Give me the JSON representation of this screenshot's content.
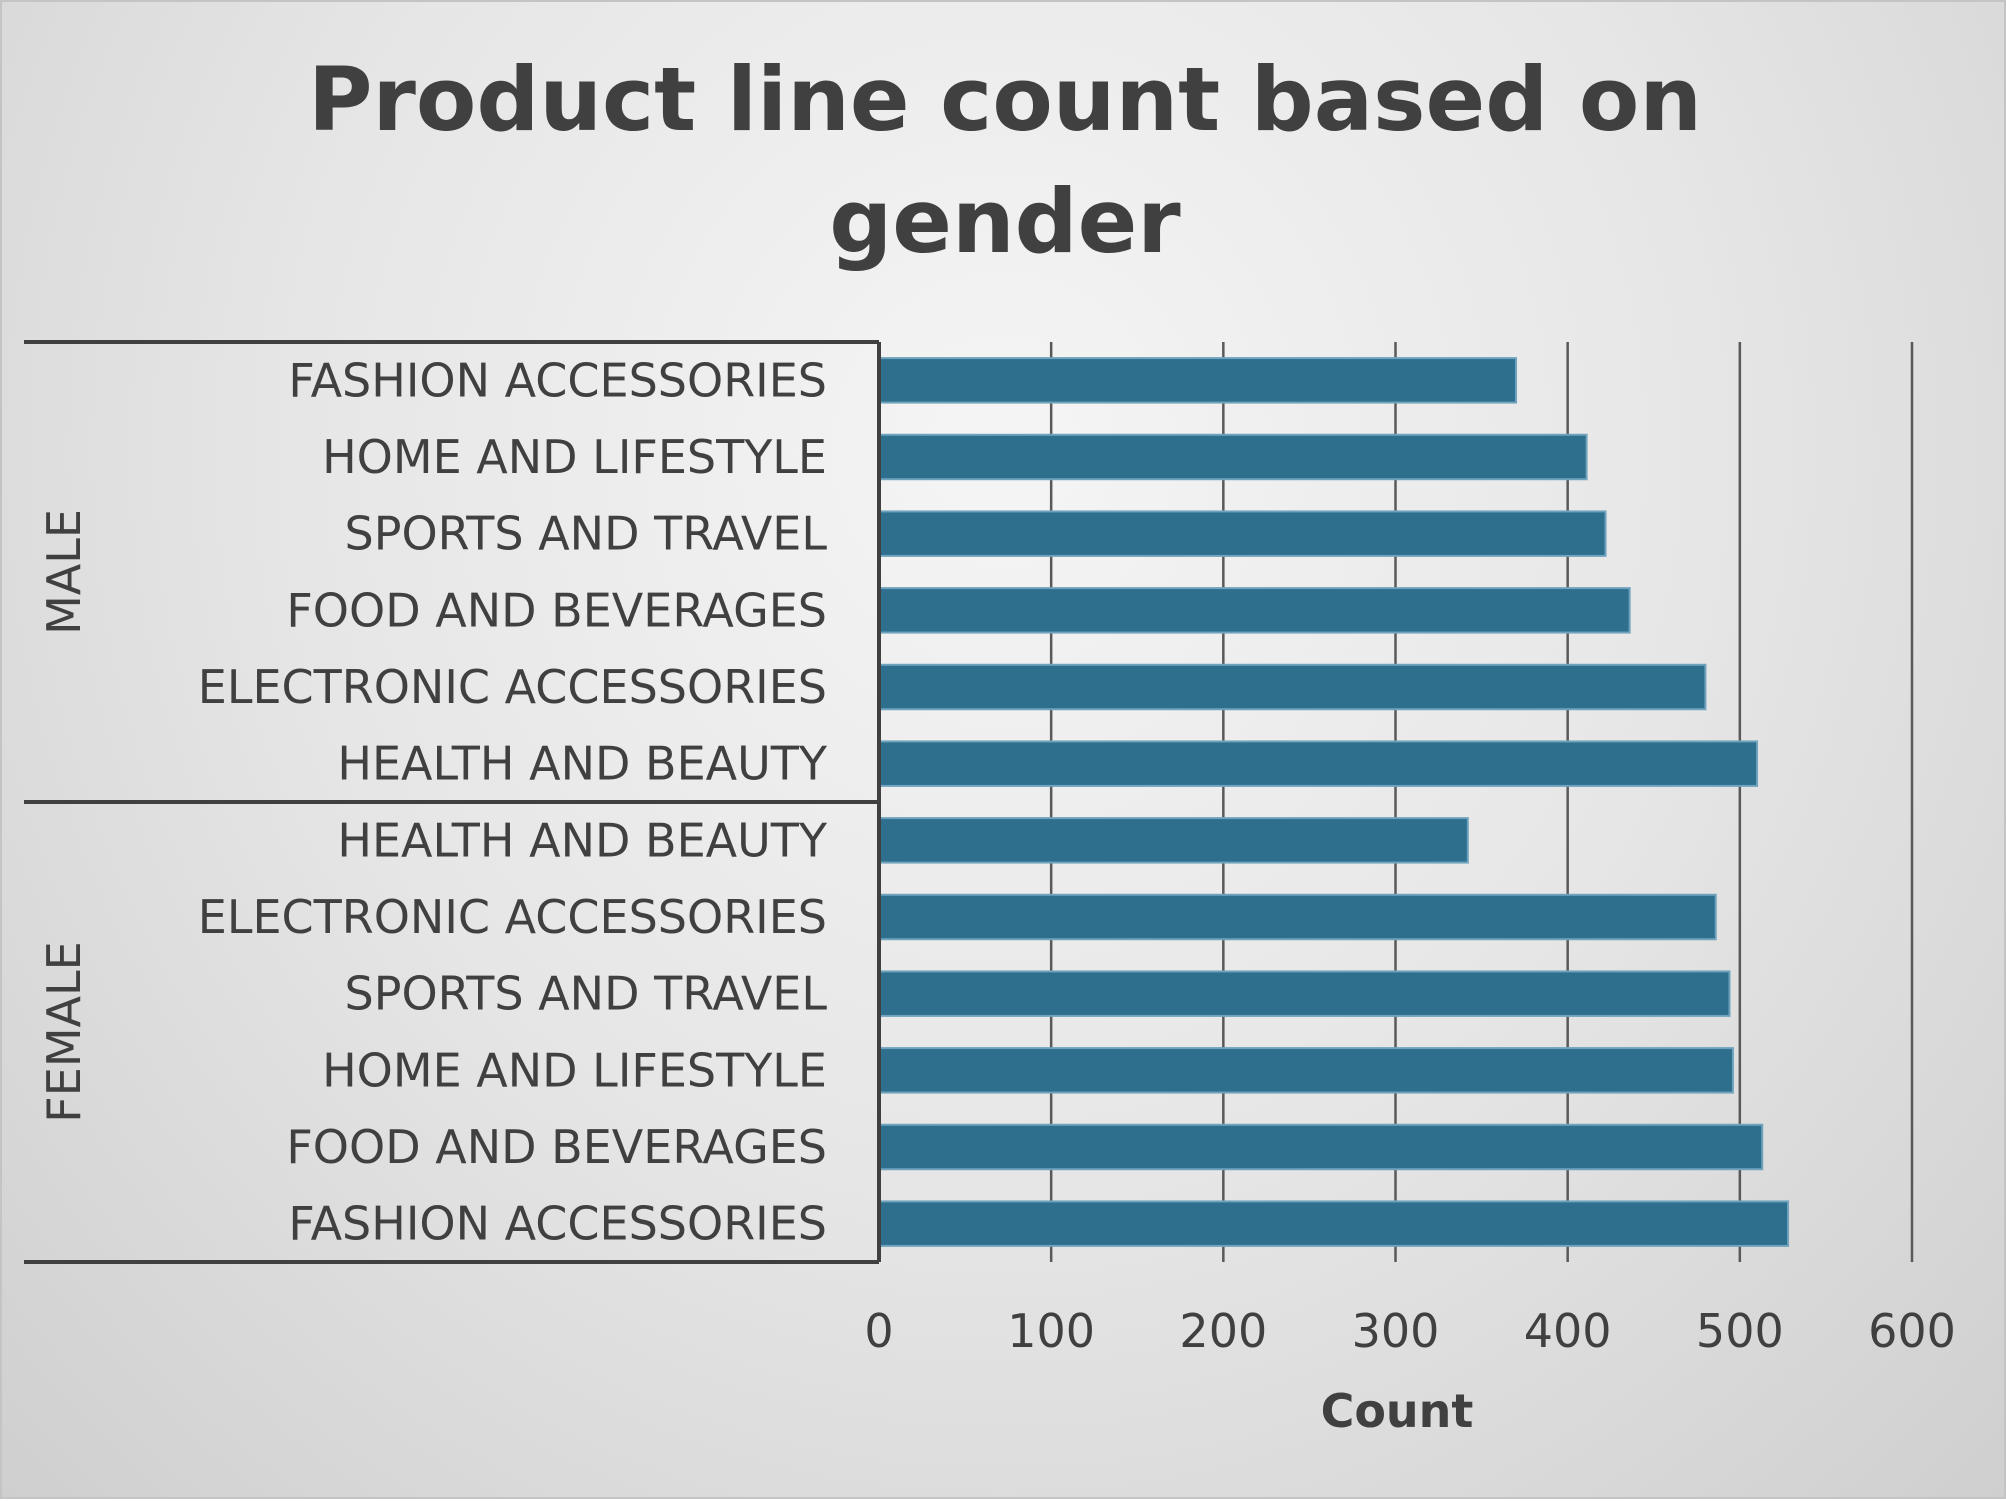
{
  "chart_data": {
    "type": "bar",
    "orientation": "horizontal",
    "title_lines": [
      "Product line count based on",
      "gender"
    ],
    "xlabel": "Count",
    "ylabel": "",
    "xlim": [
      0,
      600
    ],
    "xticks": [
      "0",
      "100",
      "200",
      "300",
      "400",
      "500",
      "600"
    ],
    "grid": "vertical",
    "legend": "none",
    "bar_color": "#2e6f8e",
    "groups": [
      {
        "name": "MALE",
        "categories": [
          "FASHION ACCESSORIES",
          "HOME AND LIFESTYLE",
          "SPORTS AND TRAVEL",
          "FOOD AND BEVERAGES",
          "ELECTRONIC ACCESSORIES",
          "HEALTH AND BEAUTY"
        ],
        "values": [
          370,
          411,
          422,
          436,
          480,
          510
        ]
      },
      {
        "name": "FEMALE",
        "categories": [
          "HEALTH AND BEAUTY",
          "ELECTRONIC ACCESSORIES",
          "SPORTS AND TRAVEL",
          "HOME AND LIFESTYLE",
          "FOOD AND BEVERAGES",
          "FASHION ACCESSORIES"
        ],
        "values": [
          342,
          486,
          494,
          496,
          513,
          528
        ]
      }
    ]
  }
}
